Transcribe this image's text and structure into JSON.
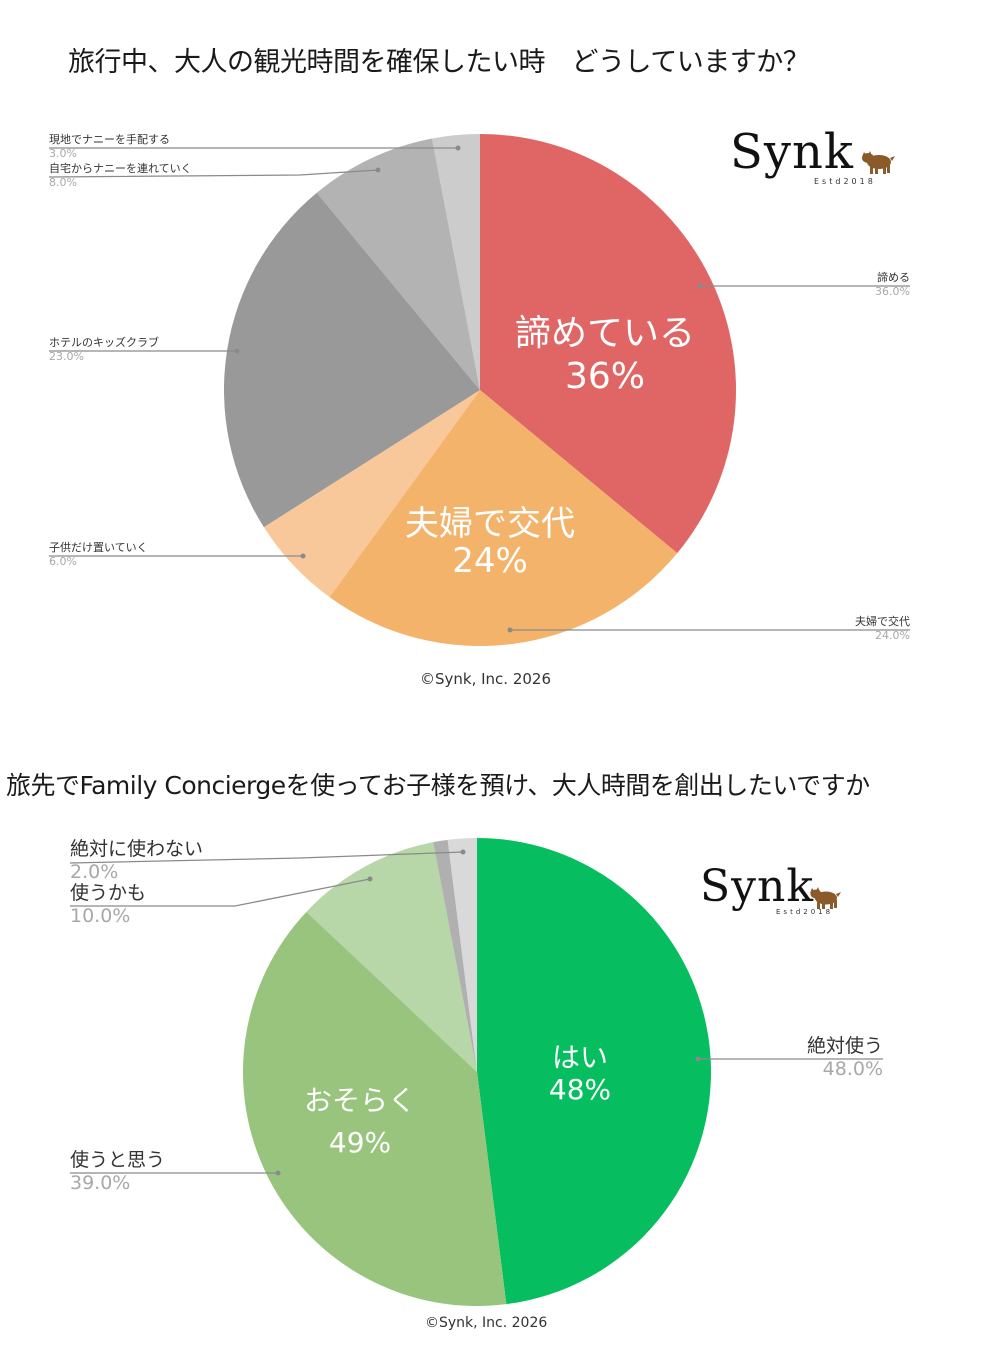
{
  "chart_data": [
    {
      "type": "pie",
      "title": "旅行中、大人の観光時間を確保したい時　どうしていますか？",
      "center": [
        480,
        390
      ],
      "radius": 256,
      "slices": [
        {
          "label": "諦める",
          "value": 36.0,
          "pct_label": "36.0%",
          "color": "#E06666"
        },
        {
          "label": "夫婦で交代",
          "value": 24.0,
          "pct_label": "24.0%",
          "color": "#F3B36B"
        },
        {
          "label": "子供だけ置いていく",
          "value": 6.0,
          "pct_label": "6.0%",
          "color": "#F8C89A"
        },
        {
          "label": "ホテルのキッズクラブ",
          "value": 23.0,
          "pct_label": "23.0%",
          "color": "#999999"
        },
        {
          "label": "自宅からナニーを連れていく",
          "value": 8.0,
          "pct_label": "8.0%",
          "color": "#B3B3B3"
        },
        {
          "label": "現地でナニーを手配する",
          "value": 3.0,
          "pct_label": "3.0%",
          "color": "#CCCCCC"
        }
      ],
      "inner_annotations": [
        {
          "line1": "諦めている",
          "line2": "36%"
        },
        {
          "line1": "夫婦で交代",
          "line2": "24%"
        }
      ],
      "copyright": "©Synk, Inc. 2026"
    },
    {
      "type": "pie",
      "title": "旅先でFamily Conciergeを使ってお子様を預け、大人時間を創出したいですか",
      "center": [
        477,
        1072
      ],
      "radius": 234,
      "slices": [
        {
          "label": "絶対使う",
          "value": 48.0,
          "pct_label": "48.0%",
          "color": "#06BE5F"
        },
        {
          "label": "使うと思う",
          "value": 39.0,
          "pct_label": "39.0%",
          "color": "#98C47E"
        },
        {
          "label": "使うかも",
          "value": 10.0,
          "pct_label": "10.0%",
          "color": "#B7D7A8"
        },
        {
          "label": "",
          "value": 1.0,
          "pct_label": "",
          "color": "#B0B0B0"
        },
        {
          "label": "絶対に使わない",
          "value": 2.0,
          "pct_label": "2.0%",
          "color": "#D9D9D9"
        }
      ],
      "inner_annotations": [
        {
          "line1": "はい",
          "line2": "48%"
        },
        {
          "line1": "おそらく",
          "line2": "49%"
        }
      ],
      "copyright": "©Synk, Inc. 2026"
    }
  ],
  "logo": {
    "word": "Synk",
    "estd": "Estd2018",
    "mascot_color": "#8B5A2B"
  },
  "leader_color": "#8a8a8a"
}
